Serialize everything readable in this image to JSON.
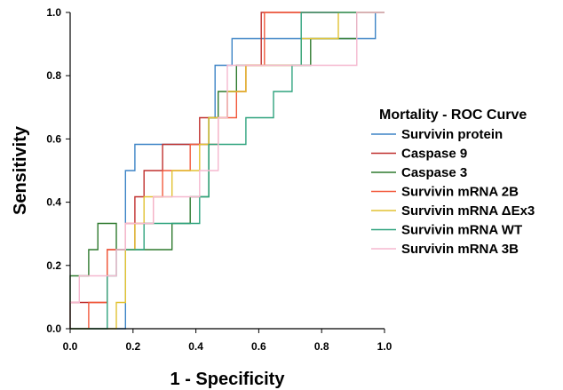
{
  "chart_data": {
    "type": "line",
    "title": "",
    "xlabel": "1 - Specificity",
    "ylabel": "Sensitivity",
    "xlim": [
      0,
      1
    ],
    "ylim": [
      0,
      1
    ],
    "x_ticks": [
      "0.0",
      "0.2",
      "0.4",
      "0.6",
      "0.8",
      "1.0"
    ],
    "y_ticks": [
      "0.0",
      "0.2",
      "0.4",
      "0.6",
      "0.8",
      "1.0"
    ],
    "grid": false,
    "legend": {
      "title": "Mortality - ROC Curve",
      "position": "right"
    },
    "series": [
      {
        "name": "Survivin protein",
        "color": "#3d84c6",
        "points": [
          [
            0,
            0
          ],
          [
            0.176,
            0
          ],
          [
            0.176,
            0.5
          ],
          [
            0.206,
            0.5
          ],
          [
            0.206,
            0.583
          ],
          [
            0.441,
            0.583
          ],
          [
            0.441,
            0.667
          ],
          [
            0.461,
            0.667
          ],
          [
            0.461,
            0.833
          ],
          [
            0.515,
            0.833
          ],
          [
            0.515,
            0.917
          ],
          [
            0.971,
            0.917
          ],
          [
            0.971,
            1
          ],
          [
            1,
            1
          ]
        ]
      },
      {
        "name": "Caspase 9",
        "color": "#c0302e",
        "points": [
          [
            0,
            0
          ],
          [
            0,
            0.083
          ],
          [
            0.118,
            0.083
          ],
          [
            0.118,
            0.25
          ],
          [
            0.206,
            0.25
          ],
          [
            0.206,
            0.417
          ],
          [
            0.235,
            0.417
          ],
          [
            0.235,
            0.5
          ],
          [
            0.294,
            0.5
          ],
          [
            0.294,
            0.583
          ],
          [
            0.412,
            0.583
          ],
          [
            0.412,
            0.667
          ],
          [
            0.5,
            0.667
          ],
          [
            0.5,
            0.75
          ],
          [
            0.559,
            0.75
          ],
          [
            0.559,
            0.833
          ],
          [
            0.608,
            0.833
          ],
          [
            0.608,
            1
          ],
          [
            1,
            1
          ]
        ]
      },
      {
        "name": "Caspase 3",
        "color": "#2f7a2f",
        "points": [
          [
            0,
            0
          ],
          [
            0,
            0.167
          ],
          [
            0.059,
            0.167
          ],
          [
            0.059,
            0.25
          ],
          [
            0.088,
            0.25
          ],
          [
            0.088,
            0.333
          ],
          [
            0.147,
            0.333
          ],
          [
            0.147,
            0.25
          ],
          [
            0.324,
            0.25
          ],
          [
            0.324,
            0.333
          ],
          [
            0.382,
            0.333
          ],
          [
            0.382,
            0.417
          ],
          [
            0.441,
            0.417
          ],
          [
            0.441,
            0.667
          ],
          [
            0.471,
            0.667
          ],
          [
            0.471,
            0.75
          ],
          [
            0.529,
            0.75
          ],
          [
            0.529,
            0.833
          ],
          [
            0.765,
            0.833
          ],
          [
            0.765,
            0.917
          ],
          [
            0.912,
            0.917
          ],
          [
            0.912,
            1
          ],
          [
            1,
            1
          ]
        ]
      },
      {
        "name": "Survivin mRNA 2B",
        "color": "#f25a3c",
        "points": [
          [
            0,
            0
          ],
          [
            0.059,
            0
          ],
          [
            0.059,
            0.083
          ],
          [
            0.118,
            0.083
          ],
          [
            0.118,
            0.25
          ],
          [
            0.176,
            0.25
          ],
          [
            0.176,
            0.333
          ],
          [
            0.265,
            0.333
          ],
          [
            0.265,
            0.417
          ],
          [
            0.294,
            0.417
          ],
          [
            0.294,
            0.5
          ],
          [
            0.382,
            0.5
          ],
          [
            0.382,
            0.583
          ],
          [
            0.471,
            0.583
          ],
          [
            0.471,
            0.667
          ],
          [
            0.529,
            0.667
          ],
          [
            0.529,
            0.75
          ],
          [
            0.559,
            0.75
          ],
          [
            0.559,
            0.833
          ],
          [
            0.618,
            0.833
          ],
          [
            0.618,
            1
          ],
          [
            1,
            1
          ]
        ]
      },
      {
        "name": "Survivin mRNA ΔEx3",
        "color": "#e2c232",
        "points": [
          [
            0,
            0
          ],
          [
            0.147,
            0
          ],
          [
            0.147,
            0.083
          ],
          [
            0.176,
            0.083
          ],
          [
            0.176,
            0.25
          ],
          [
            0.206,
            0.25
          ],
          [
            0.206,
            0.333
          ],
          [
            0.235,
            0.333
          ],
          [
            0.235,
            0.417
          ],
          [
            0.324,
            0.417
          ],
          [
            0.324,
            0.5
          ],
          [
            0.412,
            0.5
          ],
          [
            0.412,
            0.583
          ],
          [
            0.441,
            0.583
          ],
          [
            0.441,
            0.667
          ],
          [
            0.5,
            0.667
          ],
          [
            0.5,
            0.75
          ],
          [
            0.559,
            0.75
          ],
          [
            0.559,
            0.833
          ],
          [
            0.735,
            0.833
          ],
          [
            0.735,
            0.917
          ],
          [
            0.853,
            0.917
          ],
          [
            0.853,
            1
          ],
          [
            1,
            1
          ]
        ]
      },
      {
        "name": "Survivin mRNA WT",
        "color": "#2fa37e",
        "points": [
          [
            0,
            0
          ],
          [
            0.118,
            0
          ],
          [
            0.118,
            0.167
          ],
          [
            0.147,
            0.167
          ],
          [
            0.147,
            0.25
          ],
          [
            0.235,
            0.25
          ],
          [
            0.235,
            0.333
          ],
          [
            0.412,
            0.333
          ],
          [
            0.412,
            0.417
          ],
          [
            0.441,
            0.417
          ],
          [
            0.441,
            0.583
          ],
          [
            0.559,
            0.583
          ],
          [
            0.559,
            0.667
          ],
          [
            0.647,
            0.667
          ],
          [
            0.647,
            0.75
          ],
          [
            0.706,
            0.75
          ],
          [
            0.706,
            0.833
          ],
          [
            0.735,
            0.833
          ],
          [
            0.735,
            1
          ],
          [
            1,
            1
          ]
        ]
      },
      {
        "name": "Survivin mRNA 3B",
        "color": "#f5b8cf",
        "points": [
          [
            0,
            0
          ],
          [
            0,
            0.083
          ],
          [
            0.029,
            0.083
          ],
          [
            0.029,
            0.167
          ],
          [
            0.147,
            0.167
          ],
          [
            0.147,
            0.25
          ],
          [
            0.176,
            0.25
          ],
          [
            0.176,
            0.333
          ],
          [
            0.265,
            0.333
          ],
          [
            0.265,
            0.417
          ],
          [
            0.412,
            0.417
          ],
          [
            0.412,
            0.5
          ],
          [
            0.471,
            0.5
          ],
          [
            0.471,
            0.667
          ],
          [
            0.5,
            0.667
          ],
          [
            0.5,
            0.833
          ],
          [
            0.912,
            0.833
          ],
          [
            0.912,
            1
          ],
          [
            1,
            1
          ]
        ]
      }
    ]
  }
}
